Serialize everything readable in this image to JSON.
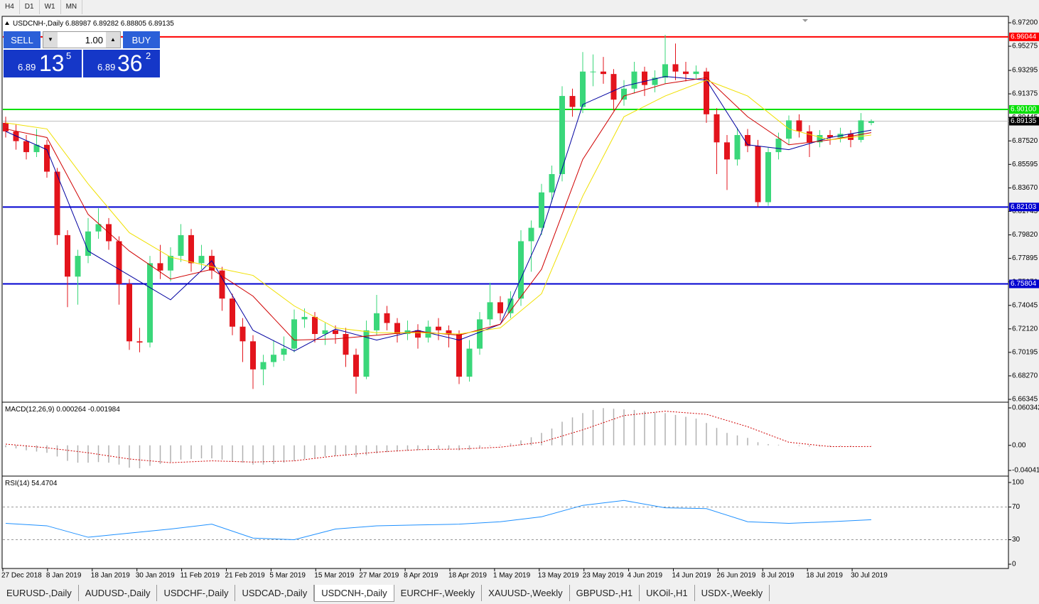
{
  "toolbar": {
    "timeframes": [
      "H4",
      "D1",
      "W1",
      "MN"
    ]
  },
  "chart_data": {
    "type": "candlestick",
    "symbol": "USDCNH-,Daily",
    "up_color": "#3ad77a",
    "down_color": "#e3141c",
    "ylim": [
      6.66345,
      6.972
    ],
    "yticks": [
      {
        "value": 6.972,
        "label": "6.97200"
      },
      6.95275,
      6.93295,
      6.91375,
      6.89445,
      {
        "value": 6.8752,
        "label": "6.87520"
      },
      6.85595,
      {
        "value": 6.8367,
        "label": "6.83670"
      },
      6.81745,
      {
        "value": 6.7982,
        "label": "6.79820"
      },
      6.77895,
      {
        "value": 6.7597,
        "label": "6.75970"
      },
      6.74045,
      {
        "value": 6.7212,
        "label": "6.72120"
      },
      6.70195,
      {
        "value": 6.6827,
        "label": "6.68270"
      },
      6.66345
    ],
    "candles": [
      [
        6.89,
        6.895,
        6.878,
        6.883
      ],
      [
        6.883,
        6.889,
        6.868,
        6.875
      ],
      [
        6.875,
        6.88,
        6.86,
        6.866
      ],
      [
        6.866,
        6.885,
        6.862,
        6.872
      ],
      [
        6.872,
        6.876,
        6.845,
        6.85
      ],
      [
        6.85,
        6.853,
        6.79,
        6.798
      ],
      [
        6.798,
        6.802,
        6.739,
        6.764
      ],
      [
        6.764,
        6.786,
        6.741,
        6.781
      ],
      [
        6.781,
        6.812,
        6.775,
        6.801
      ],
      [
        6.801,
        6.82,
        6.795,
        6.807
      ],
      [
        6.807,
        6.812,
        6.786,
        6.793
      ],
      [
        6.793,
        6.797,
        6.741,
        6.758
      ],
      [
        6.758,
        6.762,
        6.704,
        6.711
      ],
      [
        6.711,
        6.722,
        6.702,
        6.71
      ],
      [
        6.71,
        6.781,
        6.706,
        6.775
      ],
      [
        6.775,
        6.79,
        6.762,
        6.769
      ],
      [
        6.769,
        6.788,
        6.76,
        6.781
      ],
      [
        6.781,
        6.807,
        6.776,
        6.798
      ],
      [
        6.798,
        6.803,
        6.768,
        6.775
      ],
      [
        6.775,
        6.79,
        6.77,
        6.781
      ],
      [
        6.781,
        6.786,
        6.762,
        6.769
      ],
      [
        6.769,
        6.772,
        6.736,
        6.746
      ],
      [
        6.746,
        6.75,
        6.716,
        6.723
      ],
      [
        6.723,
        6.73,
        6.694,
        6.711
      ],
      [
        6.711,
        6.716,
        6.672,
        6.688
      ],
      [
        6.688,
        6.7,
        6.675,
        6.694
      ],
      [
        6.694,
        6.712,
        6.69,
        6.7
      ],
      [
        6.7,
        6.715,
        6.695,
        6.705
      ],
      [
        6.705,
        6.737,
        6.702,
        6.729
      ],
      [
        6.729,
        6.738,
        6.722,
        6.731
      ],
      [
        6.731,
        6.735,
        6.71,
        6.717
      ],
      [
        6.717,
        6.726,
        6.708,
        6.72
      ],
      [
        6.72,
        6.724,
        6.709,
        6.717
      ],
      [
        6.717,
        6.722,
        6.69,
        6.7
      ],
      [
        6.7,
        6.705,
        6.668,
        6.682
      ],
      [
        6.682,
        6.728,
        6.68,
        6.72
      ],
      [
        6.72,
        6.749,
        6.716,
        6.734
      ],
      [
        6.734,
        6.74,
        6.72,
        6.726
      ],
      [
        6.726,
        6.73,
        6.71,
        6.717
      ],
      [
        6.717,
        6.728,
        6.712,
        6.72
      ],
      [
        6.72,
        6.725,
        6.705,
        6.714
      ],
      [
        6.714,
        6.728,
        6.71,
        6.723
      ],
      [
        6.723,
        6.73,
        6.712,
        6.72
      ],
      [
        6.72,
        6.724,
        6.706,
        6.717
      ],
      [
        6.717,
        6.72,
        6.676,
        6.682
      ],
      [
        6.682,
        6.712,
        6.678,
        6.705
      ],
      [
        6.705,
        6.735,
        6.7,
        6.729
      ],
      [
        6.729,
        6.759,
        6.724,
        6.743
      ],
      [
        6.743,
        6.748,
        6.728,
        6.734
      ],
      [
        6.734,
        6.752,
        6.73,
        6.746
      ],
      [
        6.746,
        6.802,
        6.74,
        6.793
      ],
      [
        6.793,
        6.81,
        6.768,
        6.804
      ],
      [
        6.804,
        6.84,
        6.798,
        6.833
      ],
      [
        6.833,
        6.855,
        6.825,
        6.848
      ],
      [
        6.848,
        6.92,
        6.842,
        6.912
      ],
      [
        6.912,
        6.918,
        6.895,
        6.903
      ],
      [
        6.903,
        6.948,
        6.898,
        6.932
      ],
      [
        6.932,
        6.946,
        6.92,
        6.932
      ],
      [
        6.932,
        6.944,
        6.922,
        6.93
      ],
      [
        6.93,
        6.934,
        6.9,
        6.909
      ],
      [
        6.909,
        6.925,
        6.904,
        6.918
      ],
      [
        6.918,
        6.94,
        6.914,
        6.932
      ],
      [
        6.932,
        6.936,
        6.912,
        6.921
      ],
      [
        6.921,
        6.933,
        6.915,
        6.927
      ],
      [
        6.927,
        6.962,
        6.922,
        6.938
      ],
      [
        6.938,
        6.955,
        6.925,
        6.932
      ],
      [
        6.932,
        6.94,
        6.924,
        6.93
      ],
      [
        6.93,
        6.937,
        6.926,
        6.932
      ],
      [
        6.932,
        6.935,
        6.89,
        6.897
      ],
      [
        6.897,
        6.902,
        6.848,
        6.874
      ],
      [
        6.874,
        6.88,
        6.835,
        6.86
      ],
      [
        6.86,
        6.886,
        6.855,
        6.88
      ],
      [
        6.88,
        6.885,
        6.866,
        6.871
      ],
      [
        6.871,
        6.876,
        6.821,
        6.825
      ],
      [
        6.825,
        6.87,
        6.822,
        6.866
      ],
      [
        6.866,
        6.882,
        6.86,
        6.877
      ],
      [
        6.877,
        6.896,
        6.872,
        6.892
      ],
      [
        6.892,
        6.897,
        6.878,
        6.883
      ],
      [
        6.883,
        6.888,
        6.862,
        6.874
      ],
      [
        6.874,
        6.884,
        6.87,
        6.88
      ],
      [
        6.88,
        6.884,
        6.872,
        6.878
      ],
      [
        6.878,
        6.886,
        6.874,
        6.881
      ],
      [
        6.881,
        6.884,
        6.87,
        6.876
      ],
      [
        6.876,
        6.898,
        6.874,
        6.892
      ],
      [
        6.88987,
        6.89282,
        6.88805,
        6.89135
      ]
    ],
    "levels": [
      {
        "value": 6.96044,
        "color": "#ff0000"
      },
      {
        "value": 6.901,
        "label": "6.90100",
        "color": "#00e000"
      },
      {
        "value": 6.82103,
        "color": "#0000d0"
      },
      {
        "value": 6.75804,
        "color": "#0000d0"
      }
    ],
    "ma": [
      {
        "color": "#0000a0",
        "x": [
          0,
          4,
          8,
          12,
          16,
          20,
          24,
          28,
          32,
          36,
          40,
          44,
          48,
          52,
          56,
          60,
          64,
          68,
          72,
          76,
          80,
          84
        ],
        "values": [
          6.883,
          6.868,
          6.785,
          6.765,
          6.745,
          6.777,
          6.72,
          6.703,
          6.721,
          6.712,
          6.72,
          6.712,
          6.725,
          6.8,
          6.905,
          6.92,
          6.928,
          6.925,
          6.872,
          6.868,
          6.878,
          6.884
        ]
      },
      {
        "color": "#d00000",
        "x": [
          0,
          4,
          8,
          12,
          16,
          20,
          24,
          28,
          32,
          36,
          40,
          44,
          48,
          52,
          56,
          60,
          64,
          68,
          72,
          76,
          80,
          84
        ],
        "values": [
          6.885,
          6.878,
          6.815,
          6.785,
          6.762,
          6.77,
          6.748,
          6.712,
          6.713,
          6.716,
          6.719,
          6.716,
          6.725,
          6.77,
          6.86,
          6.912,
          6.922,
          6.927,
          6.895,
          6.872,
          6.876,
          6.882
        ]
      },
      {
        "color": "#f0e000",
        "x": [
          0,
          4,
          8,
          12,
          16,
          20,
          24,
          28,
          32,
          36,
          40,
          44,
          48,
          52,
          56,
          60,
          64,
          68,
          72,
          76,
          80,
          84
        ],
        "values": [
          6.89,
          6.885,
          6.84,
          6.8,
          6.78,
          6.772,
          6.765,
          6.74,
          6.722,
          6.718,
          6.718,
          6.717,
          6.722,
          6.75,
          6.83,
          6.895,
          6.912,
          6.925,
          6.912,
          6.885,
          6.876,
          6.88
        ]
      }
    ],
    "x_labels": [
      "27 Dec 2018",
      "8 Jan 2019",
      "18 Jan 2019",
      "30 Jan 2019",
      "11 Feb 2019",
      "21 Feb 2019",
      "5 Mar 2019",
      "15 Mar 2019",
      "27 Mar 2019",
      "8 Apr 2019",
      "18 Apr 2019",
      "1 May 2019",
      "13 May 2019",
      "23 May 2019",
      "4 Jun 2019",
      "14 Jun 2019",
      "26 Jun 2019",
      "8 Jul 2019",
      "18 Jul 2019",
      "30 Jul 2019"
    ],
    "macd": {
      "name": "MACD(12,26,9)",
      "color": "#b0b0b0",
      "ylim": [
        -0.040415,
        0.060342
      ],
      "yticks": [
        0.060342,
        {
          "value": 0,
          "label": "0.00"
        },
        -0.040415
      ],
      "values": [
        -0.003,
        -0.005,
        -0.008,
        -0.01,
        -0.012,
        -0.018,
        -0.025,
        -0.028,
        -0.028,
        -0.027,
        -0.028,
        -0.031,
        -0.036,
        -0.037,
        -0.033,
        -0.03,
        -0.027,
        -0.023,
        -0.022,
        -0.021,
        -0.021,
        -0.023,
        -0.026,
        -0.028,
        -0.031,
        -0.031,
        -0.03,
        -0.028,
        -0.025,
        -0.022,
        -0.02,
        -0.018,
        -0.017,
        -0.017,
        -0.019,
        -0.016,
        -0.013,
        -0.011,
        -0.01,
        -0.009,
        -0.008,
        -0.007,
        -0.006,
        -0.006,
        -0.008,
        -0.007,
        -0.004,
        -0.001,
        0.001,
        0.003,
        0.008,
        0.013,
        0.02,
        0.027,
        0.038,
        0.045,
        0.052,
        0.057,
        0.06,
        0.059,
        0.058,
        0.057,
        0.055,
        0.053,
        0.052,
        0.049,
        0.046,
        0.043,
        0.036,
        0.028,
        0.02,
        0.016,
        0.012,
        0.005,
        0.002,
        0.001,
        0.0,
        -0.001,
        -0.002,
        -0.002,
        -0.002,
        -0.001,
        -0.001,
        0.0,
        0.000264
      ],
      "signal": {
        "color": "#d00000",
        "x": [
          0,
          4,
          8,
          12,
          16,
          20,
          24,
          28,
          32,
          36,
          40,
          44,
          48,
          52,
          56,
          60,
          64,
          68,
          72,
          76,
          80,
          84
        ],
        "values": [
          0.002,
          -0.004,
          -0.012,
          -0.022,
          -0.028,
          -0.025,
          -0.027,
          -0.025,
          -0.017,
          -0.011,
          -0.007,
          -0.006,
          -0.003,
          0.005,
          0.025,
          0.048,
          0.055,
          0.05,
          0.03,
          0.005,
          -0.002,
          -0.001984
        ]
      }
    },
    "rsi": {
      "name": "RSI(14)",
      "color": "#1e90ff",
      "ylim": [
        0,
        100
      ],
      "yticks": [
        100,
        70,
        30,
        0
      ],
      "levels": [
        70,
        30
      ],
      "x": [
        0,
        4,
        8,
        12,
        16,
        20,
        24,
        28,
        32,
        36,
        40,
        44,
        48,
        52,
        56,
        60,
        64,
        68,
        72,
        76,
        80,
        84
      ],
      "values": [
        50,
        47,
        33,
        38,
        43,
        49,
        32,
        30,
        43,
        47,
        48,
        49,
        52,
        58,
        72,
        78,
        69,
        68,
        52,
        50,
        52,
        54.4704
      ]
    }
  },
  "trade_panel": {
    "sell": "SELL",
    "lot": "1.00",
    "buy": "BUY",
    "bid": {
      "big": "6.89",
      "mid": "13",
      "small": "5"
    },
    "ask": {
      "big": "6.89",
      "mid": "36",
      "small": "2"
    }
  },
  "tabs": [
    "EURUSD-,Daily",
    "AUDUSD-,Daily",
    "USDCHF-,Daily",
    "USDCAD-,Daily",
    "USDCNH-,Daily",
    "EURCHF-,Weekly",
    "XAUUSD-,Weekly",
    "GBPUSD-,H1",
    "UKOil-,H1",
    "USDX-,Weekly"
  ],
  "active_tab": 4
}
